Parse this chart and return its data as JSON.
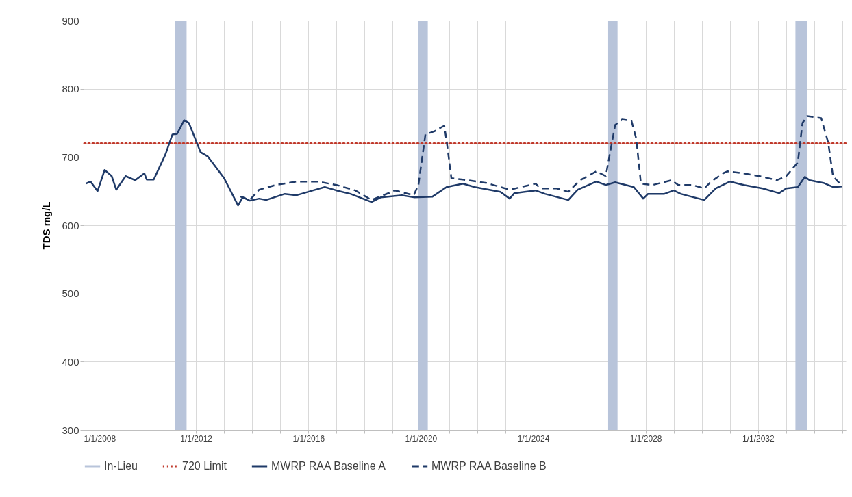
{
  "chart_data": {
    "type": "line",
    "ylabel": "TDS mg/L",
    "xlim": [
      "2008-01-01",
      "2035-02-15"
    ],
    "ylim": [
      300,
      900
    ],
    "xticks": [
      {
        "value": "2008-01-01",
        "label": "1/1/2008"
      },
      {
        "value": "2009-01-01",
        "label": null
      },
      {
        "value": "2010-01-01",
        "label": null
      },
      {
        "value": "2011-01-01",
        "label": null
      },
      {
        "value": "2012-01-01",
        "label": "1/1/2012"
      },
      {
        "value": "2013-01-01",
        "label": null
      },
      {
        "value": "2014-01-01",
        "label": null
      },
      {
        "value": "2015-01-01",
        "label": null
      },
      {
        "value": "2016-01-01",
        "label": "1/1/2016"
      },
      {
        "value": "2017-01-01",
        "label": null
      },
      {
        "value": "2018-01-01",
        "label": null
      },
      {
        "value": "2019-01-01",
        "label": null
      },
      {
        "value": "2020-01-01",
        "label": "1/1/2020"
      },
      {
        "value": "2021-01-01",
        "label": null
      },
      {
        "value": "2022-01-01",
        "label": null
      },
      {
        "value": "2023-01-01",
        "label": null
      },
      {
        "value": "2024-01-01",
        "label": "1/1/2024"
      },
      {
        "value": "2025-01-01",
        "label": null
      },
      {
        "value": "2026-01-01",
        "label": null
      },
      {
        "value": "2027-01-01",
        "label": null
      },
      {
        "value": "2028-01-01",
        "label": "1/1/2028"
      },
      {
        "value": "2029-01-01",
        "label": null
      },
      {
        "value": "2030-01-01",
        "label": null
      },
      {
        "value": "2031-01-01",
        "label": null
      },
      {
        "value": "2032-01-01",
        "label": "1/1/2032"
      },
      {
        "value": "2033-01-01",
        "label": null
      },
      {
        "value": "2034-01-01",
        "label": null
      },
      {
        "value": "2035-01-01",
        "label": null
      }
    ],
    "yticks": [
      300,
      400,
      500,
      600,
      700,
      800,
      900
    ],
    "grid": true,
    "legend": "bottom",
    "bands": [
      {
        "axis": "x",
        "from": "2011-04",
        "to": "2011-09",
        "label": "In-Lieu",
        "color": "#b8c4da"
      },
      {
        "axis": "x",
        "from": "2019-12",
        "to": "2020-04",
        "color": "#b8c4da"
      },
      {
        "axis": "x",
        "from": "2026-09",
        "to": "2027-01",
        "color": "#b8c4da"
      },
      {
        "axis": "x",
        "from": "2033-05",
        "to": "2033-10",
        "color": "#b8c4da"
      }
    ],
    "ref_lines": [
      {
        "axis": "y",
        "value": 720,
        "label": "720 Limit",
        "color": "#c0392b",
        "line_style": "dotted"
      }
    ],
    "series": [
      {
        "name": "MWRP RAA Baseline A",
        "color": "#1f3a68",
        "line_style": "solid",
        "x": [
          "2008-02",
          "2008-04",
          "2008-07",
          "2008-10",
          "2009-01",
          "2009-03",
          "2009-07",
          "2009-11",
          "2010-03",
          "2010-04",
          "2010-07",
          "2010-12",
          "2011-03",
          "2011-05",
          "2011-08",
          "2011-10",
          "2012-03",
          "2012-06",
          "2013-01",
          "2013-07",
          "2013-09",
          "2013-12",
          "2014-04",
          "2014-07",
          "2015-03",
          "2015-08",
          "2016-03",
          "2016-08",
          "2017-01",
          "2017-07",
          "2018-04",
          "2018-08",
          "2019-05",
          "2019-10",
          "2020-06",
          "2020-12",
          "2021-07",
          "2021-12",
          "2022-11",
          "2023-03",
          "2023-05",
          "2024-02",
          "2024-06",
          "2025-04",
          "2025-08",
          "2026-04",
          "2026-08",
          "2026-12",
          "2027-08",
          "2027-12",
          "2028-02",
          "2028-09",
          "2029-01",
          "2029-04",
          "2030-02",
          "2030-07",
          "2031-01",
          "2031-07",
          "2032-03",
          "2032-10",
          "2033-01",
          "2033-06",
          "2033-09",
          "2033-11",
          "2034-05",
          "2034-09",
          "2035-01"
        ],
        "values": [
          661,
          664,
          650,
          681,
          672,
          652,
          672,
          666,
          676,
          667,
          667,
          704,
          733,
          734,
          754,
          750,
          707,
          701,
          669,
          629,
          641,
          636,
          639,
          637,
          646,
          644,
          651,
          656,
          651,
          646,
          634,
          641,
          644,
          641,
          642,
          656,
          661,
          656,
          649,
          639,
          647,
          651,
          646,
          637,
          652,
          664,
          659,
          663,
          656,
          639,
          646,
          646,
          651,
          646,
          637,
          654,
          664,
          659,
          654,
          647,
          654,
          656,
          671,
          666,
          662,
          656,
          657
        ]
      },
      {
        "name": "MWRP RAA Baseline B",
        "color": "#1f3a68",
        "line_style": "dashed",
        "x": [
          "2013-08",
          "2013-12",
          "2014-04",
          "2014-11",
          "2015-08",
          "2016-05",
          "2017-01",
          "2017-09",
          "2018-04",
          "2019-02",
          "2019-10",
          "2019-12",
          "2020-03",
          "2020-07",
          "2020-11",
          "2020-12",
          "2021-02",
          "2021-07",
          "2022-05",
          "2022-11",
          "2023-03",
          "2024-02",
          "2024-04",
          "2024-11",
          "2025-04",
          "2025-09",
          "2026-04",
          "2026-08",
          "2026-12",
          "2027-03",
          "2027-07",
          "2027-09",
          "2027-11",
          "2028-04",
          "2028-12",
          "2029-03",
          "2029-09",
          "2030-02",
          "2030-05",
          "2030-10",
          "2030-12",
          "2031-07",
          "2032-03",
          "2032-09",
          "2033-01",
          "2033-06",
          "2033-08",
          "2033-10",
          "2034-04",
          "2034-07",
          "2034-09",
          "2035-01"
        ],
        "values": [
          642,
          637,
          652,
          659,
          664,
          664,
          659,
          651,
          637,
          651,
          644,
          659,
          733,
          738,
          746,
          724,
          669,
          667,
          662,
          656,
          652,
          661,
          654,
          654,
          649,
          666,
          679,
          672,
          747,
          755,
          753,
          727,
          661,
          659,
          666,
          659,
          659,
          654,
          664,
          676,
          679,
          676,
          671,
          666,
          672,
          692,
          750,
          760,
          757,
          721,
          672,
          657
        ]
      }
    ]
  }
}
